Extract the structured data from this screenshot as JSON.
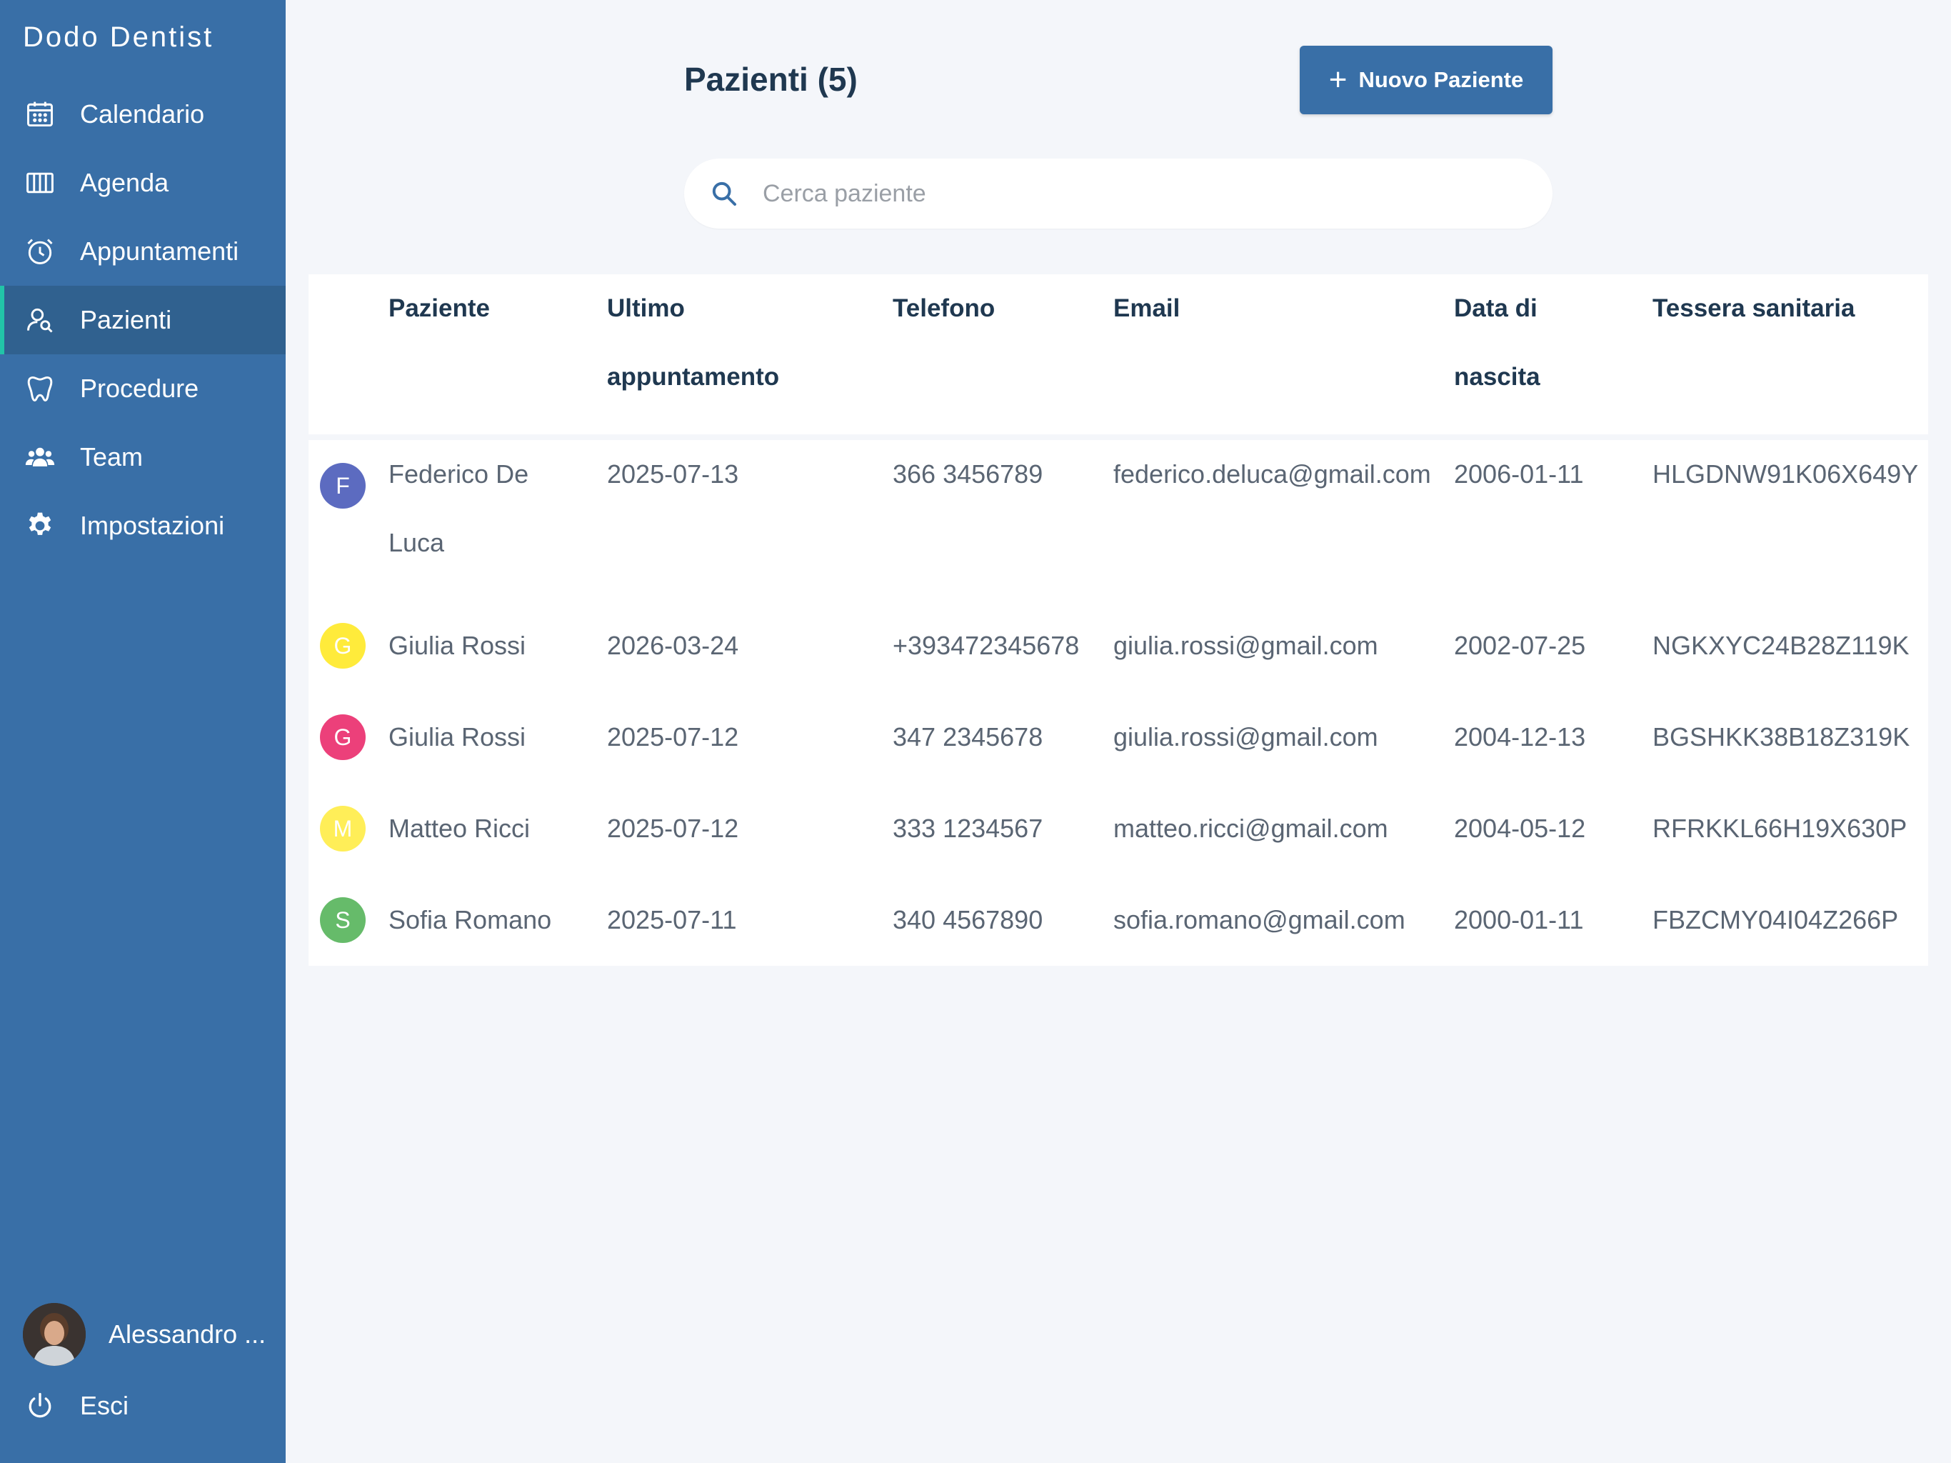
{
  "brand": "Dodo Dentist",
  "sidebar": {
    "items": [
      {
        "label": "Calendario",
        "icon": "calendar-icon"
      },
      {
        "label": "Agenda",
        "icon": "columns-icon"
      },
      {
        "label": "Appuntamenti",
        "icon": "alarm-clock-icon"
      },
      {
        "label": "Pazienti",
        "icon": "user-search-icon",
        "active": true
      },
      {
        "label": "Procedure",
        "icon": "tooth-icon"
      },
      {
        "label": "Team",
        "icon": "users-icon"
      },
      {
        "label": "Impostazioni",
        "icon": "gear-icon"
      }
    ],
    "user_name": "Alessandro ...",
    "logout_label": "Esci"
  },
  "header": {
    "title": "Pazienti (5)",
    "new_button_label": "Nuovo Paziente"
  },
  "search": {
    "placeholder": "Cerca paziente"
  },
  "table": {
    "columns": [
      "Paziente",
      "Ultimo appuntamento",
      "Telefono",
      "Email",
      "Data di nascita",
      "Tessera sanitaria"
    ],
    "rows": [
      {
        "initial": "F",
        "avatar_color": "#5c6bc0",
        "name": "Federico De Luca",
        "last": "2025-07-13",
        "phone": "366 3456789",
        "email": "federico.deluca@gmail.com",
        "dob": "2006-01-11",
        "card": "HLGDNW91K06X649Y"
      },
      {
        "initial": "G",
        "avatar_color": "#ffeb3b",
        "name": "Giulia Rossi",
        "last": "2026-03-24",
        "phone": "+393472345678",
        "email": "giulia.rossi@gmail.com",
        "dob": "2002-07-25",
        "card": "NGKXYC24B28Z119K"
      },
      {
        "initial": "G",
        "avatar_color": "#ec407a",
        "name": "Giulia Rossi",
        "last": "2025-07-12",
        "phone": "347 2345678",
        "email": "giulia.rossi@gmail.com",
        "dob": "2004-12-13",
        "card": "BGSHKK38B18Z319K"
      },
      {
        "initial": "M",
        "avatar_color": "#ffee58",
        "name": "Matteo Ricci",
        "last": "2025-07-12",
        "phone": "333 1234567",
        "email": "matteo.ricci@gmail.com",
        "dob": "2004-05-12",
        "card": "RFRKKL66H19X630P"
      },
      {
        "initial": "S",
        "avatar_color": "#66bb6a",
        "name": "Sofia Romano",
        "last": "2025-07-11",
        "phone": "340 4567890",
        "email": "sofia.romano@gmail.com",
        "dob": "2000-01-11",
        "card": "FBZCMY04I04Z266P"
      }
    ]
  },
  "colors": {
    "sidebar": "#396fa7",
    "sidebar_active": "#30618f",
    "active_indicator": "#22c4a8",
    "primary": "#396fa7",
    "heading": "#1f3850"
  }
}
